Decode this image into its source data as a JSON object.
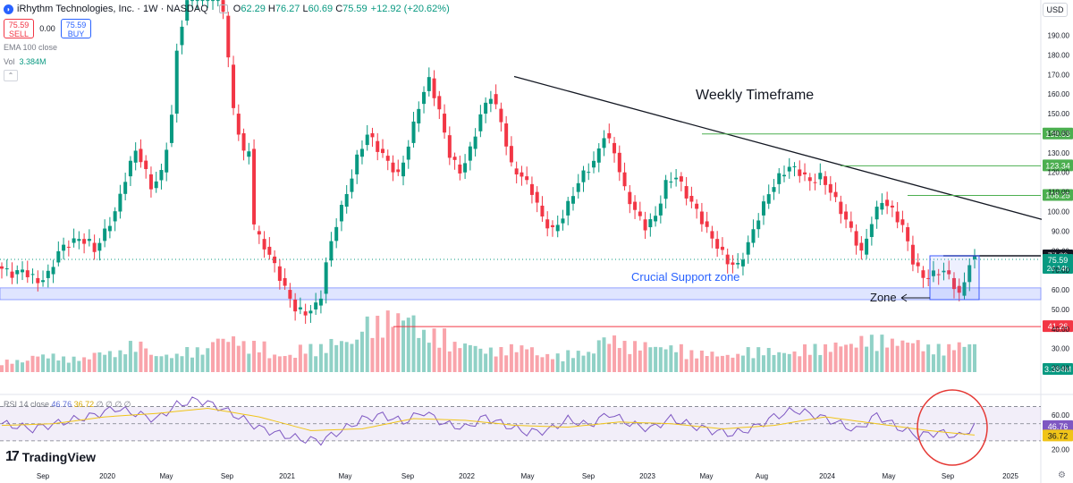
{
  "header": {
    "symbol_title": "iRhythm Technologies, Inc. · 1W · NASDAQ",
    "ohlc": {
      "o_label": "O",
      "o": "62.29",
      "h_label": "H",
      "h": "76.27",
      "l_label": "L",
      "l": "60.69",
      "c_label": "C",
      "c": "75.59"
    },
    "change": "+12.92 (+20.62%)"
  },
  "trade": {
    "sell_price": "75.59",
    "sell_label": "SELL",
    "spread": "0.00",
    "buy_price": "75.59",
    "buy_label": "BUY"
  },
  "indicators": {
    "ema_label": "EMA 100 close",
    "vol_label": "Vol",
    "vol_value": "3.384M",
    "rsi_label": "RSI 14 close",
    "rsi_value": "46.76",
    "rsi_ma_value": "36.72",
    "rsi_extra": "∅ ∅ ∅ ∅"
  },
  "currency": "USD",
  "brand": "TradingView",
  "colors": {
    "up": "#089981",
    "down": "#f23645",
    "rsi": "#7e57c2",
    "rsi_ma": "#f0c419",
    "support_zone": "#c9d4ff",
    "green_line": "#4caf50",
    "red_line": "#f23645"
  },
  "chart_data": {
    "type": "candlestick",
    "title": "Weekly Timeframe",
    "x_labels": [
      "Sep",
      "2020",
      "May",
      "Sep",
      "2021",
      "May",
      "Sep",
      "2022",
      "May",
      "Sep",
      "2023",
      "May",
      "Aug",
      "2024",
      "May",
      "Sep",
      "2025"
    ],
    "price_axis": {
      "ticks": [
        190.0,
        180.0,
        170.0,
        160.0,
        150.0,
        140.0,
        130.0,
        120.0,
        110.0,
        100.0,
        90.0,
        80.0,
        70.0,
        60.0,
        50.0,
        40.0,
        30.0,
        20.0
      ],
      "range": [
        18,
        198
      ]
    },
    "rsi_axis": {
      "ticks": [
        60.0,
        40.0,
        20.0
      ],
      "upper_band": 70,
      "lower_band": 30
    },
    "horizontal_levels": [
      {
        "value": 139.63,
        "label": "139.63",
        "color": "#4caf50"
      },
      {
        "value": 123.34,
        "label": "123.34",
        "color": "#4caf50"
      },
      {
        "value": 108.25,
        "label": "108.25",
        "color": "#4caf50"
      },
      {
        "value": 77.39,
        "label": "77.39",
        "color": "#131722"
      },
      {
        "value": 41.26,
        "label": "41.26",
        "color": "#f23645"
      }
    ],
    "last_price": {
      "value": 75.59,
      "label": "75.59",
      "countdown": "2d 14h"
    },
    "volume_badge": "3.384M",
    "rsi_badges": {
      "rsi": "46.76",
      "rsi_ma": "36.72"
    },
    "support_zone": {
      "low": 55,
      "high": 61,
      "label": "Crucial Support zone"
    },
    "zone_annotation": {
      "label": "Zone",
      "box_low": 55,
      "box_high": 77.4
    },
    "trendline": {
      "from_price": 169,
      "to_price": 96
    },
    "price_path": [
      [
        0,
        72
      ],
      [
        3,
        68
      ],
      [
        5,
        70
      ],
      [
        8,
        64
      ],
      [
        10,
        68
      ],
      [
        12,
        80
      ],
      [
        14,
        84
      ],
      [
        16,
        86
      ],
      [
        18,
        84
      ],
      [
        19,
        80
      ],
      [
        21,
        90
      ],
      [
        23,
        100
      ],
      [
        25,
        118
      ],
      [
        27,
        132
      ],
      [
        28,
        126
      ],
      [
        30,
        112
      ],
      [
        32,
        120
      ],
      [
        34,
        150
      ],
      [
        35,
        185
      ],
      [
        37,
        210
      ],
      [
        38,
        225
      ],
      [
        39,
        250
      ],
      [
        41,
        265
      ],
      [
        43,
        240
      ],
      [
        44,
        200
      ],
      [
        45,
        175
      ],
      [
        46,
        150
      ],
      [
        47,
        140
      ],
      [
        48,
        128
      ],
      [
        49,
        132
      ],
      [
        50,
        90
      ],
      [
        52,
        82
      ],
      [
        54,
        72
      ],
      [
        56,
        60
      ],
      [
        58,
        50
      ],
      [
        60,
        48
      ],
      [
        62,
        52
      ],
      [
        63,
        58
      ],
      [
        64,
        75
      ],
      [
        66,
        95
      ],
      [
        68,
        110
      ],
      [
        70,
        128
      ],
      [
        72,
        140
      ],
      [
        74,
        132
      ],
      [
        76,
        125
      ],
      [
        78,
        118
      ],
      [
        80,
        135
      ],
      [
        82,
        155
      ],
      [
        84,
        168
      ],
      [
        86,
        150
      ],
      [
        88,
        128
      ],
      [
        90,
        120
      ],
      [
        92,
        132
      ],
      [
        94,
        150
      ],
      [
        96,
        160
      ],
      [
        98,
        145
      ],
      [
        100,
        122
      ],
      [
        102,
        118
      ],
      [
        104,
        110
      ],
      [
        106,
        96
      ],
      [
        108,
        90
      ],
      [
        110,
        98
      ],
      [
        112,
        110
      ],
      [
        114,
        120
      ],
      [
        116,
        125
      ],
      [
        118,
        140
      ],
      [
        120,
        130
      ],
      [
        122,
        110
      ],
      [
        124,
        100
      ],
      [
        126,
        92
      ],
      [
        128,
        98
      ],
      [
        130,
        115
      ],
      [
        132,
        118
      ],
      [
        134,
        108
      ],
      [
        136,
        100
      ],
      [
        138,
        90
      ],
      [
        140,
        82
      ],
      [
        142,
        74
      ],
      [
        144,
        72
      ],
      [
        146,
        84
      ],
      [
        148,
        98
      ],
      [
        150,
        110
      ],
      [
        152,
        118
      ],
      [
        154,
        123
      ],
      [
        156,
        120
      ],
      [
        158,
        115
      ],
      [
        160,
        118
      ],
      [
        162,
        110
      ],
      [
        164,
        100
      ],
      [
        166,
        90
      ],
      [
        168,
        78
      ],
      [
        170,
        96
      ],
      [
        172,
        106
      ],
      [
        174,
        100
      ],
      [
        176,
        92
      ],
      [
        178,
        74
      ],
      [
        180,
        66
      ],
      [
        182,
        68
      ],
      [
        184,
        70
      ],
      [
        186,
        62
      ],
      [
        187,
        57
      ],
      [
        188,
        64
      ],
      [
        189,
        75.59
      ]
    ],
    "volume_levels": [
      0.2,
      0.3,
      0.25,
      0.35,
      0.5,
      0.3,
      0.4,
      0.6,
      0.5,
      0.3,
      0.45,
      0.55,
      0.9,
      1.0,
      0.7,
      0.5,
      0.4,
      0.45,
      0.3,
      0.35,
      0.6,
      0.5,
      0.45,
      0.35,
      0.3,
      0.4,
      0.35,
      0.45,
      0.5,
      0.6,
      0.55,
      0.45,
      0.5
    ],
    "rsi_path": [
      [
        0,
        50
      ],
      [
        6,
        44
      ],
      [
        12,
        52
      ],
      [
        18,
        60
      ],
      [
        22,
        68
      ],
      [
        26,
        62
      ],
      [
        30,
        55
      ],
      [
        34,
        72
      ],
      [
        38,
        78
      ],
      [
        42,
        70
      ],
      [
        46,
        58
      ],
      [
        50,
        45
      ],
      [
        54,
        38
      ],
      [
        58,
        32
      ],
      [
        62,
        30
      ],
      [
        66,
        42
      ],
      [
        70,
        55
      ],
      [
        74,
        60
      ],
      [
        78,
        52
      ],
      [
        82,
        64
      ],
      [
        86,
        50
      ],
      [
        90,
        45
      ],
      [
        94,
        58
      ],
      [
        98,
        48
      ],
      [
        102,
        40
      ],
      [
        106,
        42
      ],
      [
        110,
        55
      ],
      [
        114,
        48
      ],
      [
        118,
        62
      ],
      [
        122,
        50
      ],
      [
        126,
        44
      ],
      [
        130,
        56
      ],
      [
        134,
        48
      ],
      [
        138,
        42
      ],
      [
        142,
        38
      ],
      [
        146,
        45
      ],
      [
        150,
        58
      ],
      [
        154,
        66
      ],
      [
        158,
        60
      ],
      [
        162,
        52
      ],
      [
        166,
        42
      ],
      [
        170,
        60
      ],
      [
        174,
        46
      ],
      [
        178,
        36
      ],
      [
        182,
        40
      ],
      [
        186,
        35
      ],
      [
        189,
        46.76
      ]
    ],
    "rsi_ma_path": [
      [
        0,
        48
      ],
      [
        10,
        50
      ],
      [
        20,
        58
      ],
      [
        30,
        62
      ],
      [
        40,
        68
      ],
      [
        50,
        58
      ],
      [
        60,
        42
      ],
      [
        70,
        44
      ],
      [
        80,
        56
      ],
      [
        90,
        54
      ],
      [
        100,
        48
      ],
      [
        110,
        46
      ],
      [
        120,
        52
      ],
      [
        130,
        50
      ],
      [
        140,
        44
      ],
      [
        150,
        48
      ],
      [
        160,
        58
      ],
      [
        170,
        50
      ],
      [
        180,
        42
      ],
      [
        189,
        36.72
      ]
    ]
  }
}
